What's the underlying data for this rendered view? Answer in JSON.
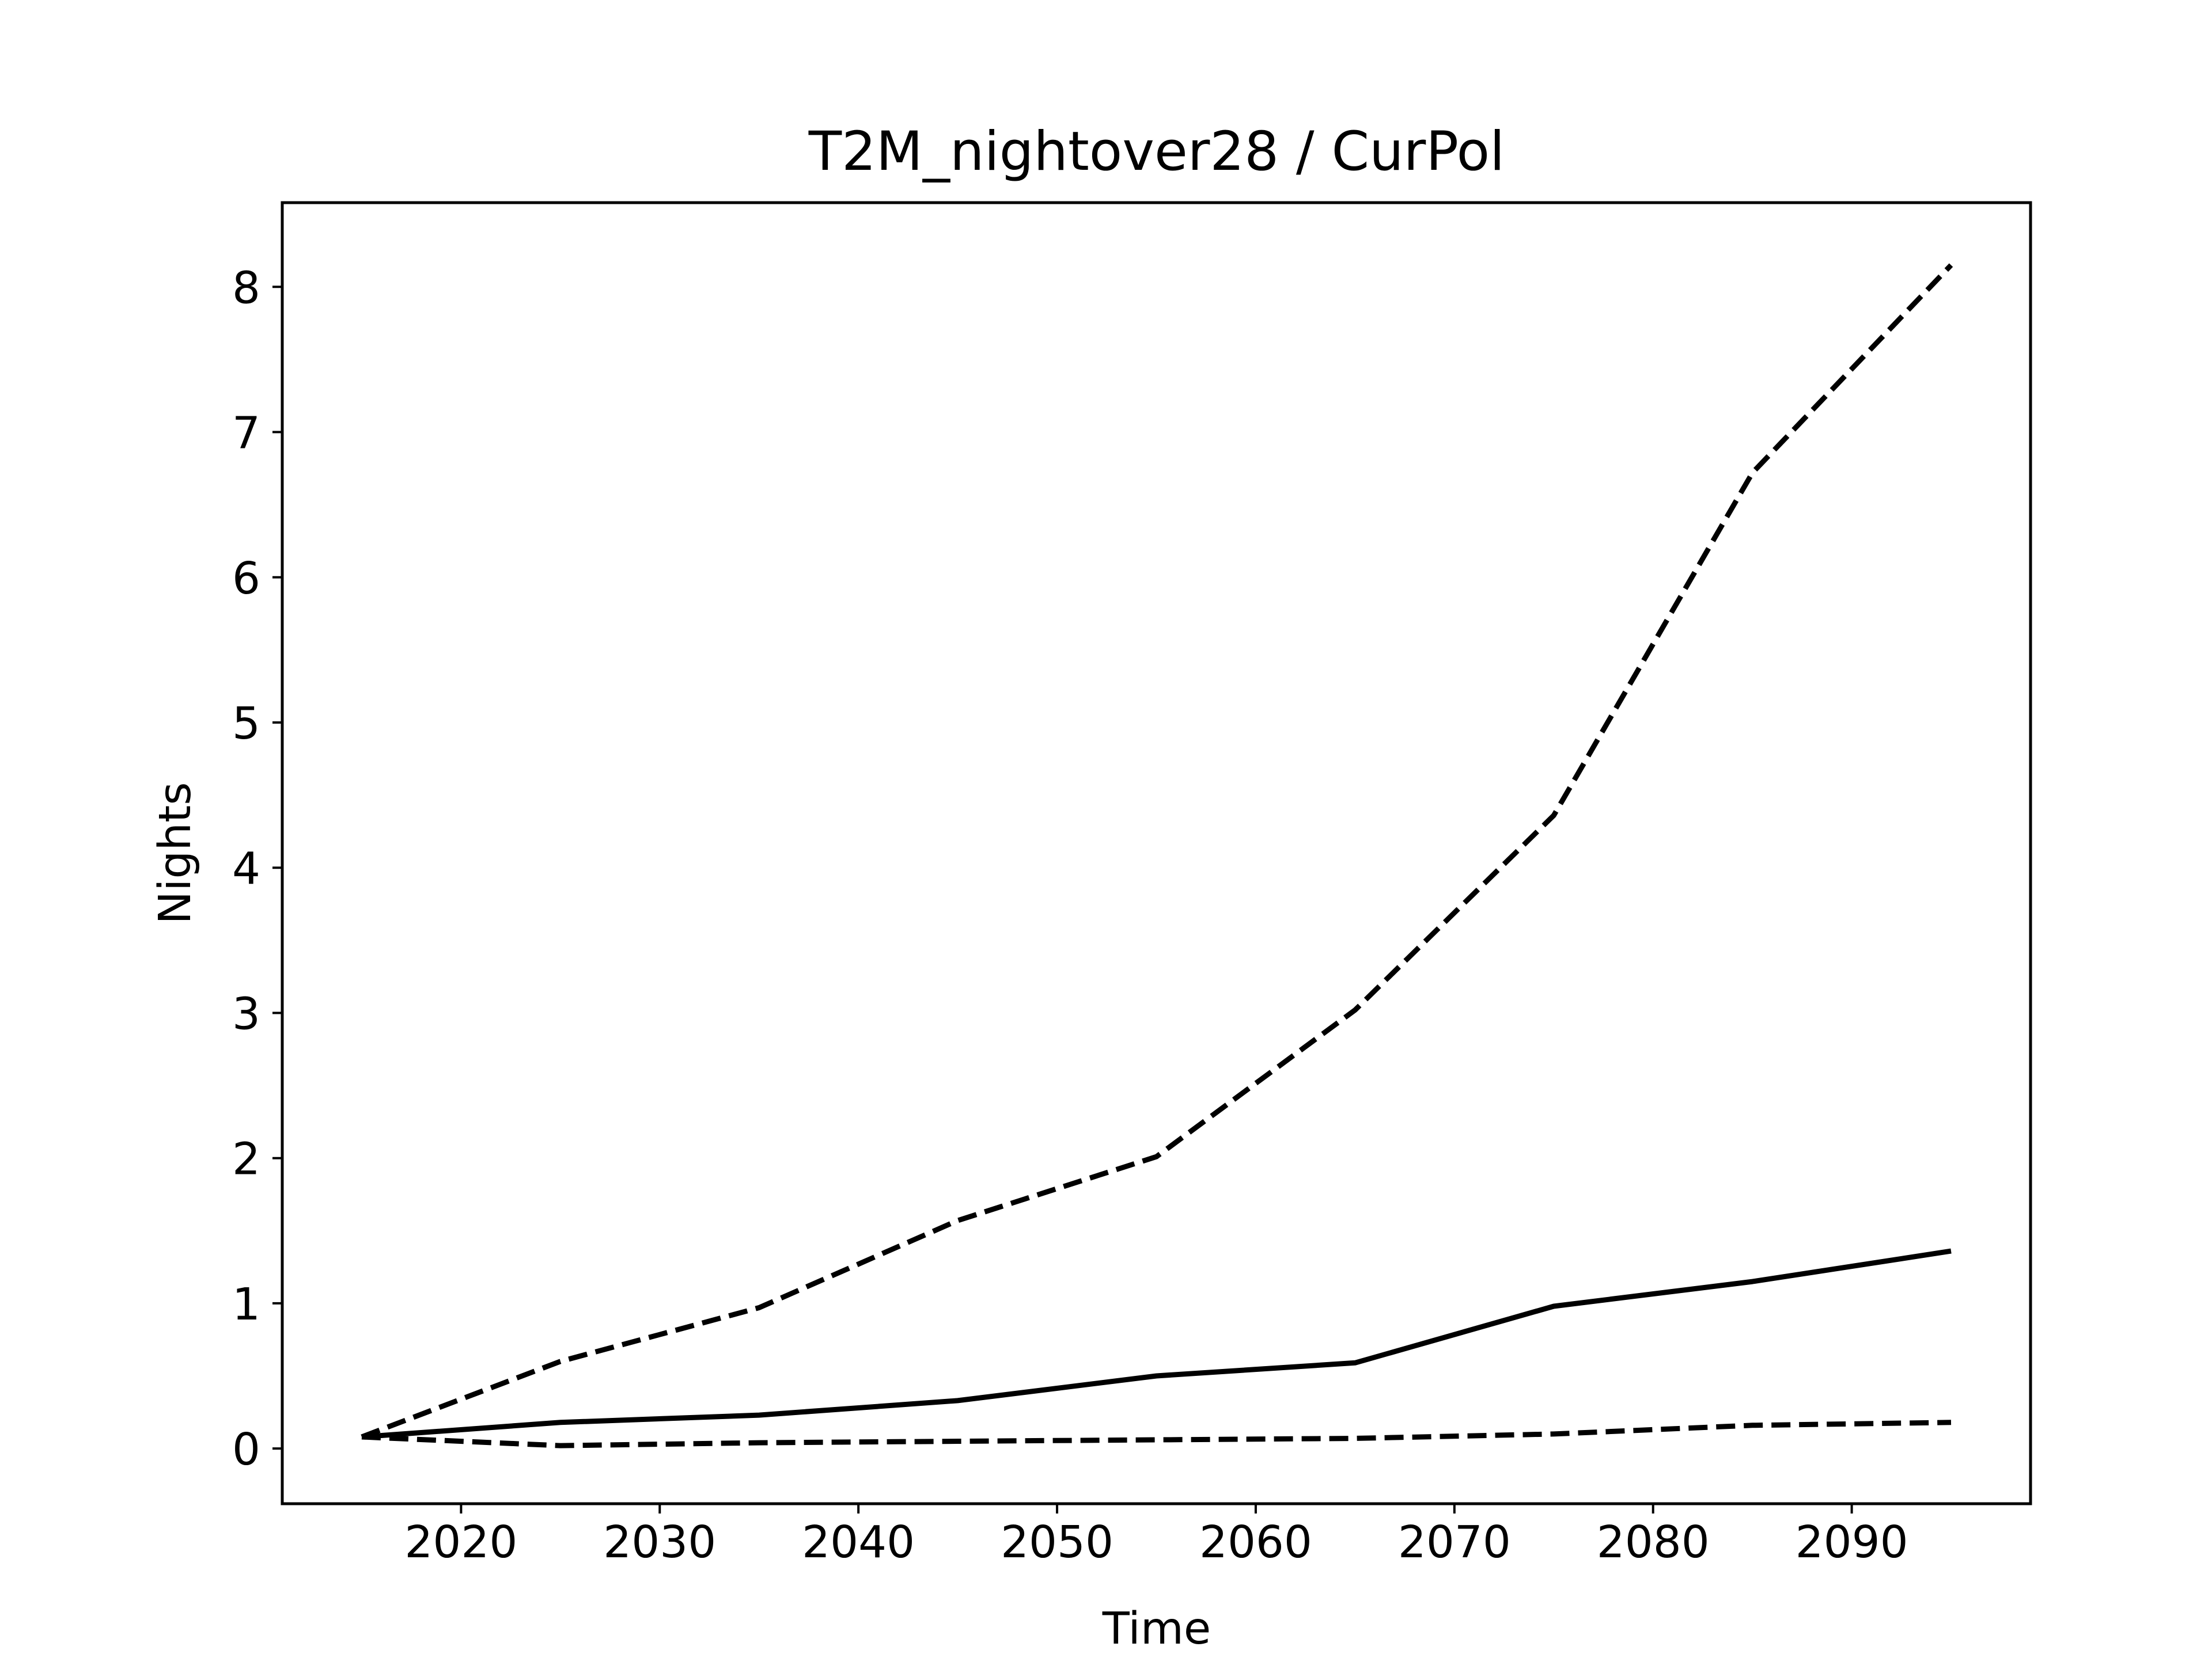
{
  "chart_data": {
    "type": "line",
    "title": "T2M_nightover28 / CurPol",
    "xlabel": "Time",
    "ylabel": "Nights",
    "xlim": [
      2011,
      2099
    ],
    "ylim": [
      -0.38,
      8.58
    ],
    "x_ticks": [
      2020,
      2030,
      2040,
      2050,
      2060,
      2070,
      2080,
      2090
    ],
    "y_ticks": [
      0,
      1,
      2,
      3,
      4,
      5,
      6,
      7,
      8
    ],
    "grid": false,
    "legend": "none",
    "x": [
      2015,
      2025,
      2035,
      2045,
      2055,
      2065,
      2075,
      2085,
      2095
    ],
    "series": [
      {
        "values": [
          0.08,
          0.6,
          0.97,
          1.57,
          2.01,
          3.02,
          4.36,
          6.72,
          8.15
        ],
        "style": "dashed",
        "color": "#000000"
      },
      {
        "values": [
          0.08,
          0.18,
          0.23,
          0.33,
          0.5,
          0.59,
          0.98,
          1.15,
          1.36
        ],
        "style": "solid",
        "color": "#000000"
      },
      {
        "values": [
          0.08,
          0.02,
          0.04,
          0.05,
          0.06,
          0.07,
          0.1,
          0.16,
          0.18
        ],
        "style": "dashed",
        "color": "#000000"
      }
    ]
  }
}
